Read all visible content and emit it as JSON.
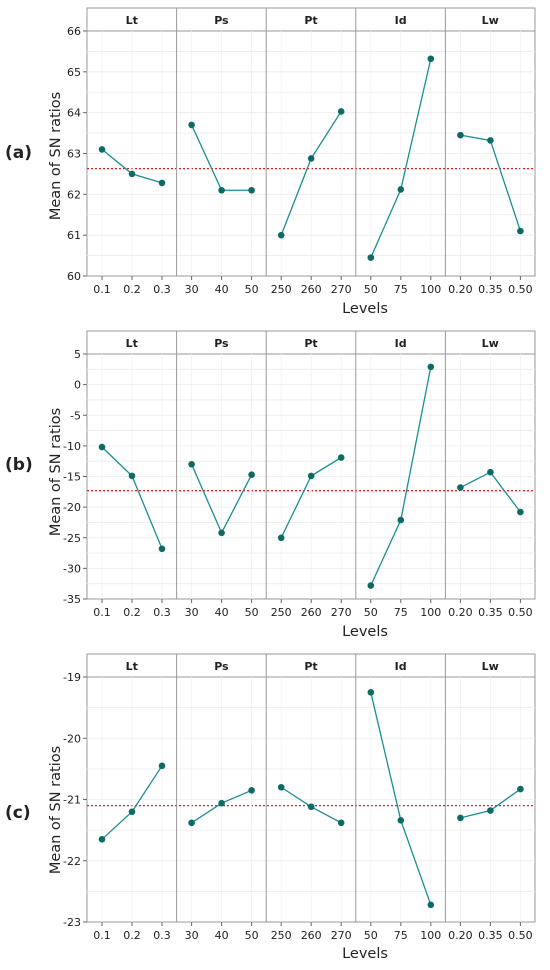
{
  "chart_data": [
    {
      "type": "line",
      "panel_label": "(a)",
      "ylabel": "Mean of SN ratios",
      "xlabel": "Levels",
      "ylim": [
        60,
        66
      ],
      "yticks": [
        "60",
        "61",
        "62",
        "63",
        "64",
        "65",
        "66"
      ],
      "ytick_values": [
        60,
        61,
        62,
        63,
        64,
        65,
        66
      ],
      "reference_line": 62.63,
      "facets": [
        {
          "name": "Lt",
          "levels": [
            "0.1",
            "0.2",
            "0.3"
          ],
          "values": [
            63.1,
            62.5,
            62.28
          ]
        },
        {
          "name": "Ps",
          "levels": [
            "30",
            "40",
            "50"
          ],
          "values": [
            63.7,
            62.1,
            62.1
          ]
        },
        {
          "name": "Pt",
          "levels": [
            "250",
            "260",
            "270"
          ],
          "values": [
            61.0,
            62.88,
            64.03
          ]
        },
        {
          "name": "Id",
          "levels": [
            "50",
            "75",
            "100"
          ],
          "values": [
            60.45,
            62.12,
            65.32
          ]
        },
        {
          "name": "Lw",
          "levels": [
            "0.20",
            "0.35",
            "0.50"
          ],
          "values": [
            63.45,
            63.32,
            61.1
          ]
        }
      ],
      "grid": true,
      "line_color": "#178f94",
      "marker_color": "#0d6b66",
      "reference_color": "#e02020"
    },
    {
      "type": "line",
      "panel_label": "(b)",
      "ylabel": "Mean of SN ratios",
      "xlabel": "Levels",
      "ylim": [
        -35,
        5
      ],
      "yticks": [
        "-35",
        "-30",
        "-25",
        "-20",
        "-15",
        "-10",
        "-5",
        "0",
        "5"
      ],
      "ytick_values": [
        -35,
        -30,
        -25,
        -20,
        -15,
        -10,
        -5,
        0,
        5
      ],
      "reference_line": -17.3,
      "facets": [
        {
          "name": "Lt",
          "levels": [
            "0.1",
            "0.2",
            "0.3"
          ],
          "values": [
            -10.2,
            -14.9,
            -26.8
          ]
        },
        {
          "name": "Ps",
          "levels": [
            "30",
            "40",
            "50"
          ],
          "values": [
            -13.0,
            -24.2,
            -14.7
          ]
        },
        {
          "name": "Pt",
          "levels": [
            "250",
            "260",
            "270"
          ],
          "values": [
            -25.0,
            -14.9,
            -11.9
          ]
        },
        {
          "name": "Id",
          "levels": [
            "50",
            "75",
            "100"
          ],
          "values": [
            -32.8,
            -22.1,
            2.9
          ]
        },
        {
          "name": "Lw",
          "levels": [
            "0.20",
            "0.35",
            "0.50"
          ],
          "values": [
            -16.8,
            -14.3,
            -20.8
          ]
        }
      ],
      "grid": true,
      "line_color": "#178f94",
      "marker_color": "#0d6b66",
      "reference_color": "#e02020"
    },
    {
      "type": "line",
      "panel_label": "(c)",
      "ylabel": "Mean of SN ratios",
      "xlabel": "Levels",
      "ylim": [
        -23,
        -19
      ],
      "yticks": [
        "-23",
        "-22",
        "-21",
        "-20",
        "-19"
      ],
      "ytick_values": [
        -23,
        -22,
        -21,
        -20,
        -19
      ],
      "reference_line": -21.1,
      "facets": [
        {
          "name": "Lt",
          "levels": [
            "0.1",
            "0.2",
            "0.3"
          ],
          "values": [
            -21.65,
            -21.2,
            -20.45
          ]
        },
        {
          "name": "Ps",
          "levels": [
            "30",
            "40",
            "50"
          ],
          "values": [
            -21.38,
            -21.06,
            -20.85
          ]
        },
        {
          "name": "Pt",
          "levels": [
            "250",
            "260",
            "270"
          ],
          "values": [
            -20.8,
            -21.12,
            -21.38
          ]
        },
        {
          "name": "Id",
          "levels": [
            "50",
            "75",
            "100"
          ],
          "values": [
            -19.25,
            -21.34,
            -22.72
          ]
        },
        {
          "name": "Lw",
          "levels": [
            "0.20",
            "0.35",
            "0.50"
          ],
          "values": [
            -21.3,
            -21.18,
            -20.83
          ]
        }
      ],
      "grid": true,
      "line_color": "#178f94",
      "marker_color": "#0d6b66",
      "reference_color": "#e02020"
    }
  ]
}
